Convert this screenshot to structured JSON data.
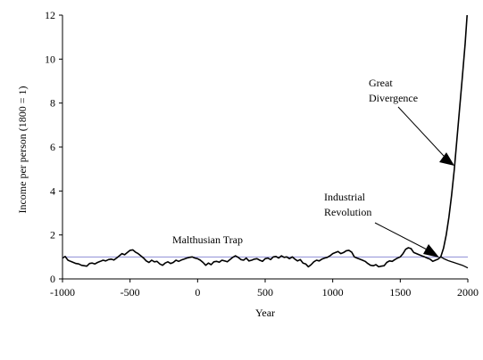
{
  "chart_data": {
    "type": "line",
    "title": "",
    "xlabel": "Year",
    "ylabel": "Income per person (1800 = 1)",
    "xlim": [
      -1000,
      2000
    ],
    "ylim": [
      0,
      12
    ],
    "x_ticks": [
      -1000,
      -500,
      0,
      500,
      1000,
      1500,
      2000
    ],
    "y_ticks": [
      0,
      2,
      4,
      6,
      8,
      10,
      12
    ],
    "x_tick_labels": [
      "-1000",
      "-500",
      "0",
      "500",
      "1000",
      "1500",
      "2000"
    ],
    "y_tick_labels": [
      "0",
      "2",
      "4",
      "6",
      "8",
      "10",
      "12"
    ],
    "grid": false,
    "reference_line": {
      "y": 1,
      "color": "#8e8ed6"
    },
    "series": [
      {
        "color": "#000000",
        "points": [
          [
            -1000,
            0.95
          ],
          [
            -980,
            1.02
          ],
          [
            -960,
            0.85
          ],
          [
            -940,
            0.8
          ],
          [
            -920,
            0.75
          ],
          [
            -900,
            0.7
          ],
          [
            -880,
            0.68
          ],
          [
            -860,
            0.62
          ],
          [
            -840,
            0.6
          ],
          [
            -820,
            0.58
          ],
          [
            -800,
            0.7
          ],
          [
            -780,
            0.72
          ],
          [
            -760,
            0.68
          ],
          [
            -740,
            0.75
          ],
          [
            -720,
            0.8
          ],
          [
            -700,
            0.85
          ],
          [
            -680,
            0.82
          ],
          [
            -660,
            0.88
          ],
          [
            -640,
            0.9
          ],
          [
            -620,
            0.86
          ],
          [
            -600,
            0.95
          ],
          [
            -580,
            1.05
          ],
          [
            -560,
            1.15
          ],
          [
            -540,
            1.1
          ],
          [
            -520,
            1.2
          ],
          [
            -500,
            1.3
          ],
          [
            -480,
            1.32
          ],
          [
            -460,
            1.22
          ],
          [
            -440,
            1.15
          ],
          [
            -420,
            1.05
          ],
          [
            -400,
            0.95
          ],
          [
            -380,
            0.82
          ],
          [
            -360,
            0.75
          ],
          [
            -340,
            0.85
          ],
          [
            -320,
            0.78
          ],
          [
            -300,
            0.8
          ],
          [
            -280,
            0.68
          ],
          [
            -260,
            0.62
          ],
          [
            -240,
            0.72
          ],
          [
            -220,
            0.78
          ],
          [
            -200,
            0.7
          ],
          [
            -180,
            0.75
          ],
          [
            -160,
            0.85
          ],
          [
            -140,
            0.8
          ],
          [
            -120,
            0.86
          ],
          [
            -100,
            0.9
          ],
          [
            -80,
            0.95
          ],
          [
            -60,
            0.98
          ],
          [
            -40,
            1.0
          ],
          [
            -20,
            0.95
          ],
          [
            0,
            0.92
          ],
          [
            20,
            0.85
          ],
          [
            40,
            0.75
          ],
          [
            60,
            0.62
          ],
          [
            80,
            0.72
          ],
          [
            100,
            0.65
          ],
          [
            120,
            0.78
          ],
          [
            140,
            0.8
          ],
          [
            160,
            0.76
          ],
          [
            180,
            0.85
          ],
          [
            200,
            0.82
          ],
          [
            220,
            0.78
          ],
          [
            240,
            0.88
          ],
          [
            260,
            0.98
          ],
          [
            280,
            1.05
          ],
          [
            300,
            0.98
          ],
          [
            320,
            0.88
          ],
          [
            340,
            0.85
          ],
          [
            360,
            0.95
          ],
          [
            380,
            0.82
          ],
          [
            400,
            0.85
          ],
          [
            420,
            0.9
          ],
          [
            440,
            0.92
          ],
          [
            460,
            0.85
          ],
          [
            480,
            0.8
          ],
          [
            500,
            0.92
          ],
          [
            520,
            0.95
          ],
          [
            540,
            0.88
          ],
          [
            560,
            1.0
          ],
          [
            580,
            1.02
          ],
          [
            600,
            0.95
          ],
          [
            620,
            1.05
          ],
          [
            640,
            0.98
          ],
          [
            660,
            1.0
          ],
          [
            680,
            0.92
          ],
          [
            700,
            1.0
          ],
          [
            720,
            0.9
          ],
          [
            740,
            0.82
          ],
          [
            760,
            0.88
          ],
          [
            780,
            0.72
          ],
          [
            800,
            0.68
          ],
          [
            820,
            0.55
          ],
          [
            840,
            0.65
          ],
          [
            860,
            0.78
          ],
          [
            880,
            0.85
          ],
          [
            900,
            0.82
          ],
          [
            920,
            0.9
          ],
          [
            940,
            0.95
          ],
          [
            960,
            0.98
          ],
          [
            980,
            1.05
          ],
          [
            1000,
            1.15
          ],
          [
            1020,
            1.2
          ],
          [
            1040,
            1.25
          ],
          [
            1060,
            1.15
          ],
          [
            1080,
            1.2
          ],
          [
            1100,
            1.28
          ],
          [
            1120,
            1.3
          ],
          [
            1140,
            1.22
          ],
          [
            1160,
            1.0
          ],
          [
            1180,
            0.95
          ],
          [
            1200,
            0.9
          ],
          [
            1220,
            0.85
          ],
          [
            1240,
            0.8
          ],
          [
            1260,
            0.7
          ],
          [
            1280,
            0.62
          ],
          [
            1300,
            0.6
          ],
          [
            1320,
            0.65
          ],
          [
            1340,
            0.55
          ],
          [
            1360,
            0.58
          ],
          [
            1380,
            0.6
          ],
          [
            1400,
            0.75
          ],
          [
            1420,
            0.82
          ],
          [
            1440,
            0.8
          ],
          [
            1460,
            0.88
          ],
          [
            1480,
            0.95
          ],
          [
            1500,
            1.0
          ],
          [
            1520,
            1.15
          ],
          [
            1540,
            1.35
          ],
          [
            1560,
            1.42
          ],
          [
            1580,
            1.38
          ],
          [
            1600,
            1.2
          ],
          [
            1620,
            1.15
          ],
          [
            1640,
            1.1
          ],
          [
            1660,
            1.05
          ],
          [
            1680,
            1.0
          ],
          [
            1700,
            0.95
          ],
          [
            1720,
            0.9
          ],
          [
            1740,
            0.8
          ],
          [
            1760,
            0.85
          ],
          [
            1780,
            0.9
          ],
          [
            1800,
            1.0
          ],
          [
            1820,
            1.4
          ],
          [
            1840,
            2.0
          ],
          [
            1860,
            2.8
          ],
          [
            1880,
            3.8
          ],
          [
            1900,
            5.0
          ],
          [
            1920,
            6.4
          ],
          [
            1940,
            7.8
          ],
          [
            1960,
            9.2
          ],
          [
            1980,
            10.7
          ],
          [
            1995,
            12.0
          ]
        ]
      },
      {
        "color": "#000000",
        "points": [
          [
            1800,
            1.0
          ],
          [
            1820,
            0.93
          ],
          [
            1840,
            0.87
          ],
          [
            1860,
            0.82
          ],
          [
            1880,
            0.78
          ],
          [
            1900,
            0.74
          ],
          [
            1920,
            0.7
          ],
          [
            1940,
            0.66
          ],
          [
            1960,
            0.62
          ],
          [
            1980,
            0.56
          ],
          [
            2000,
            0.5
          ]
        ]
      }
    ],
    "annotations": [
      {
        "lines": [
          "Malthusian Trap"
        ]
      },
      {
        "lines": [
          "Industrial",
          "Revolution"
        ]
      },
      {
        "lines": [
          "Great",
          "Divergence"
        ]
      }
    ]
  }
}
